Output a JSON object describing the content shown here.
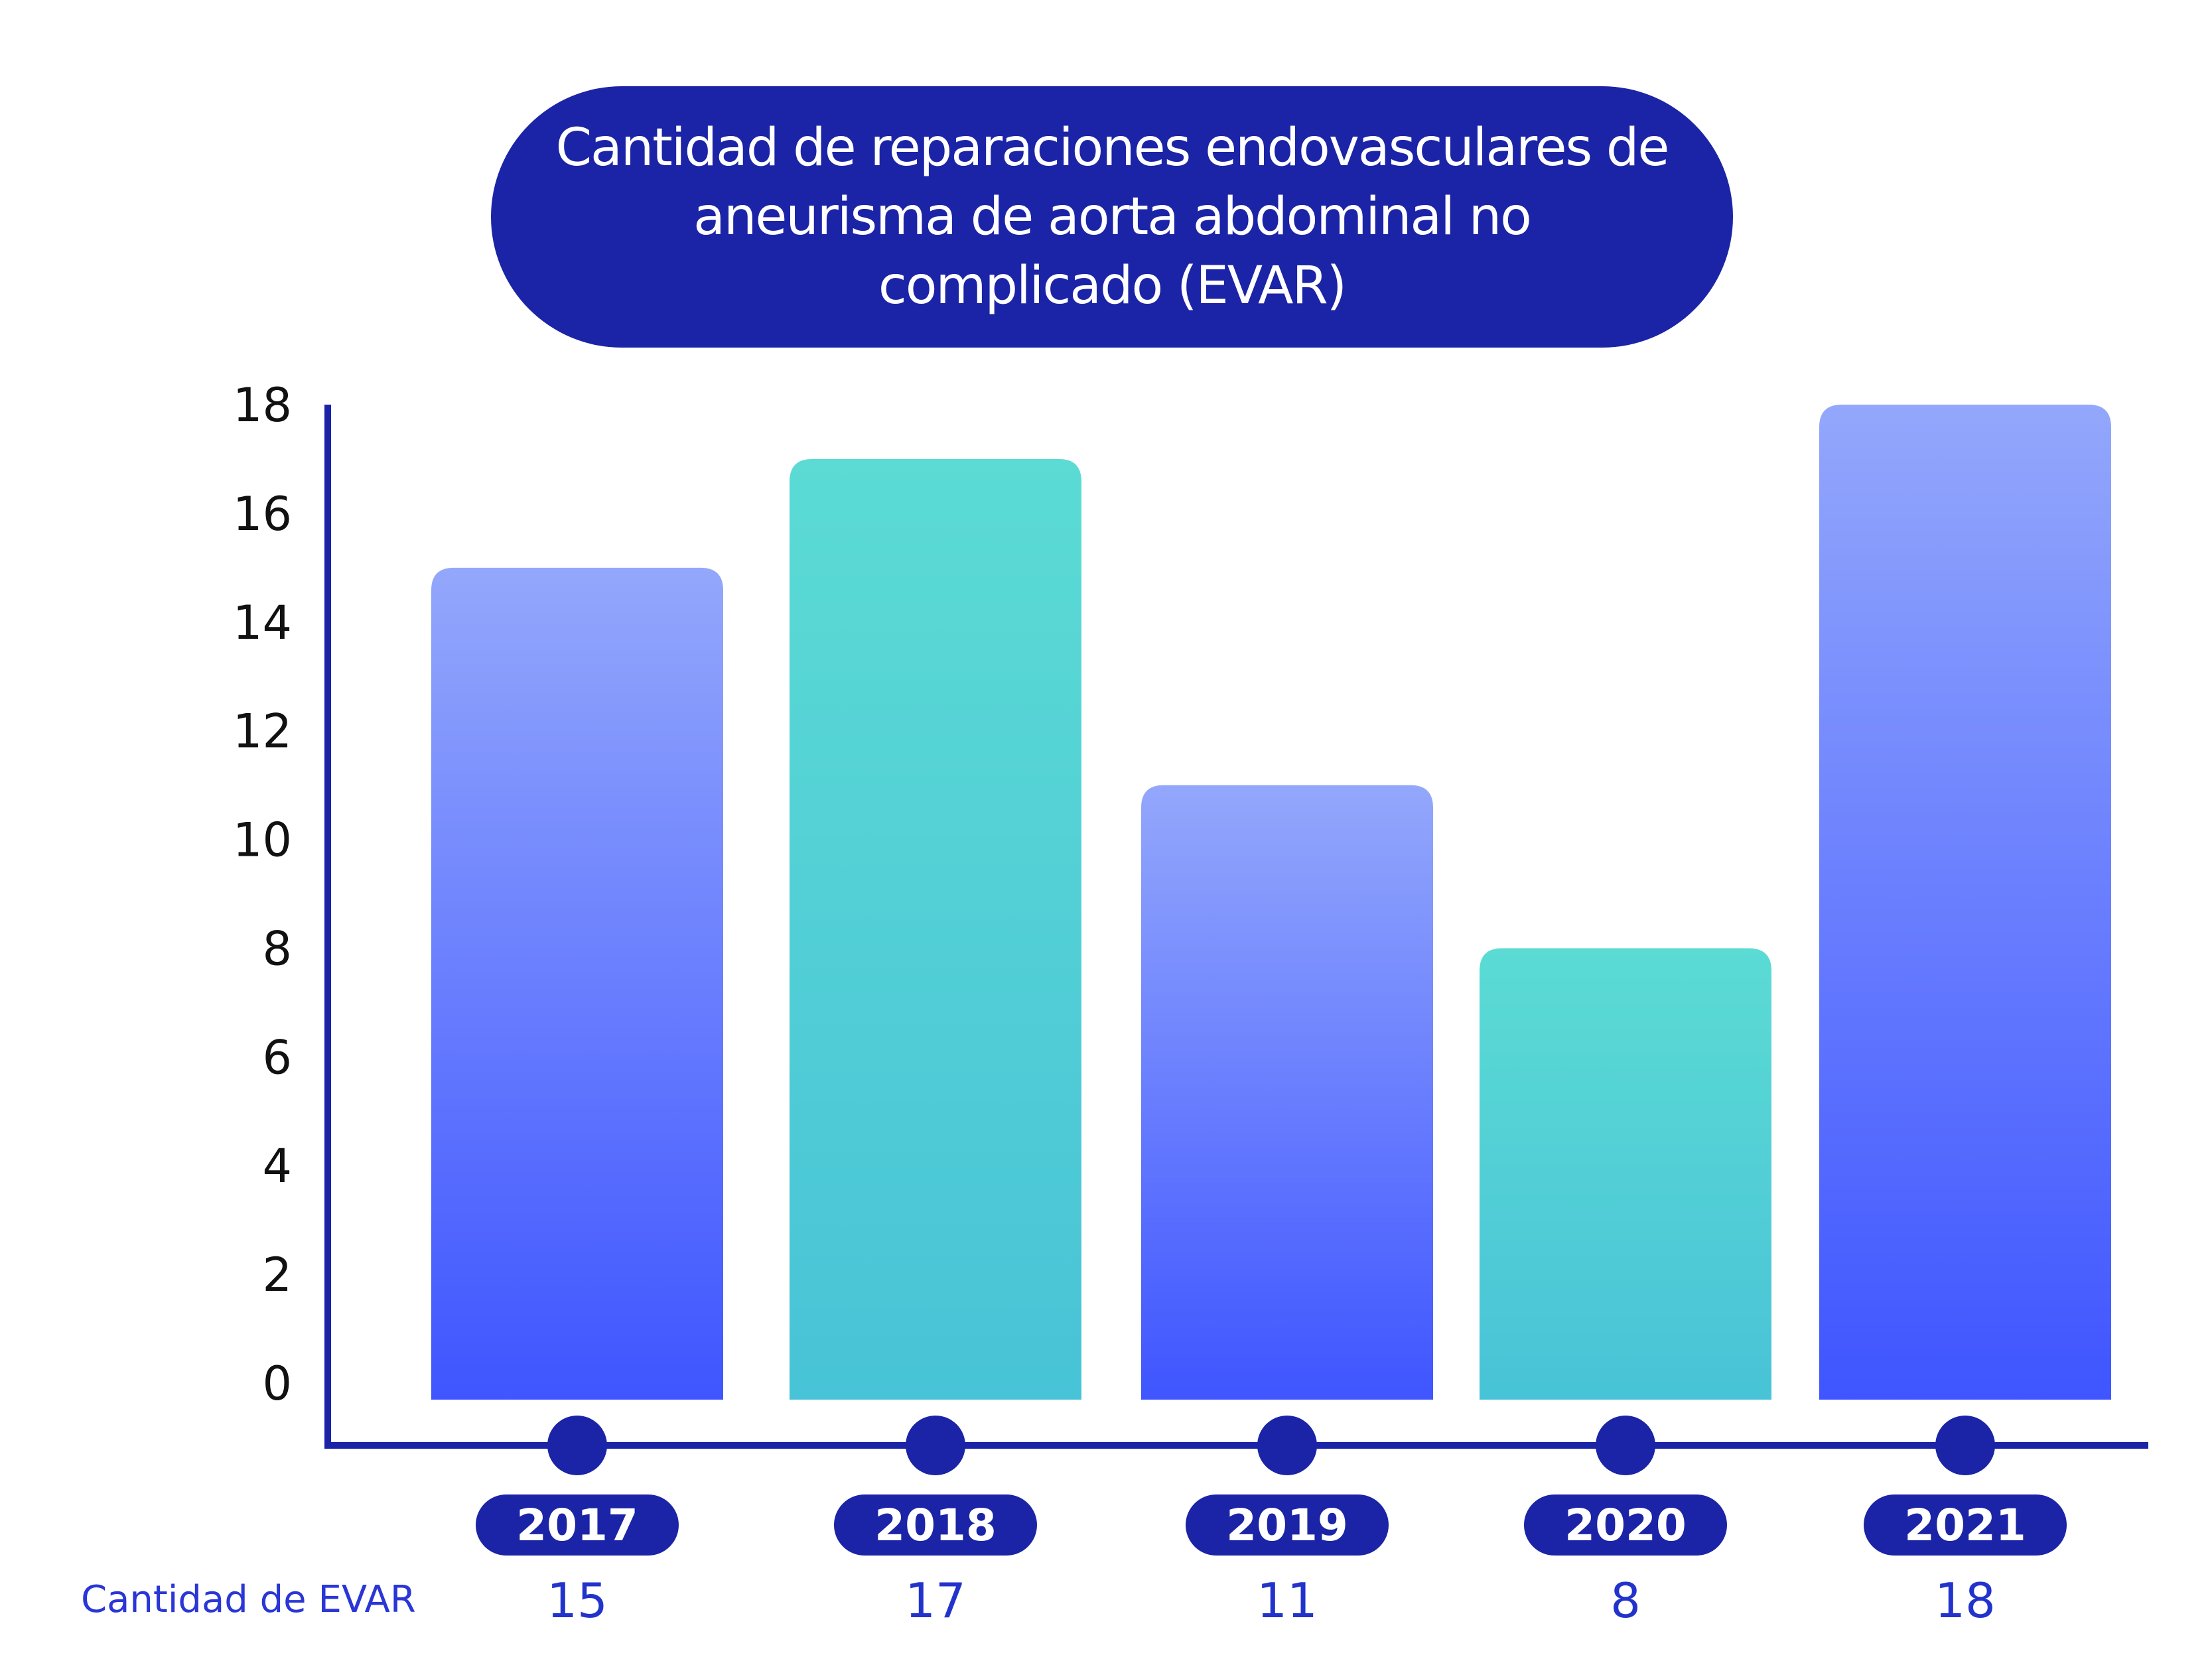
{
  "chart_data": {
    "type": "bar",
    "title": "Cantidad de reparaciones endovasculares de aneurisma de aorta abdominal no complicado (EVAR)",
    "categories": [
      "2017",
      "2018",
      "2019",
      "2020",
      "2021"
    ],
    "series": [
      {
        "name": "Cantidad de EVAR",
        "values": [
          15,
          17,
          11,
          8,
          18
        ]
      }
    ],
    "y_ticks": [
      "0",
      "2",
      "4",
      "6",
      "8",
      "10",
      "12",
      "14",
      "16",
      "18"
    ],
    "ylim": [
      0,
      18
    ],
    "grid": false,
    "legend": "none",
    "value_labels": [
      "15",
      "17",
      "11",
      "8",
      "18"
    ],
    "row_label": "Cantidad de EVAR"
  },
  "colors": {
    "title_background": "#1b24a6",
    "axis": "#1b24a6",
    "marker": "#1b24a6",
    "blue_bar_top": "#93a7fc",
    "blue_bar_bottom": "#3f55ff",
    "teal_bar_top": "#5bdbd4",
    "teal_bar_bottom": "#48c3d7",
    "value_text": "#2233cc"
  }
}
